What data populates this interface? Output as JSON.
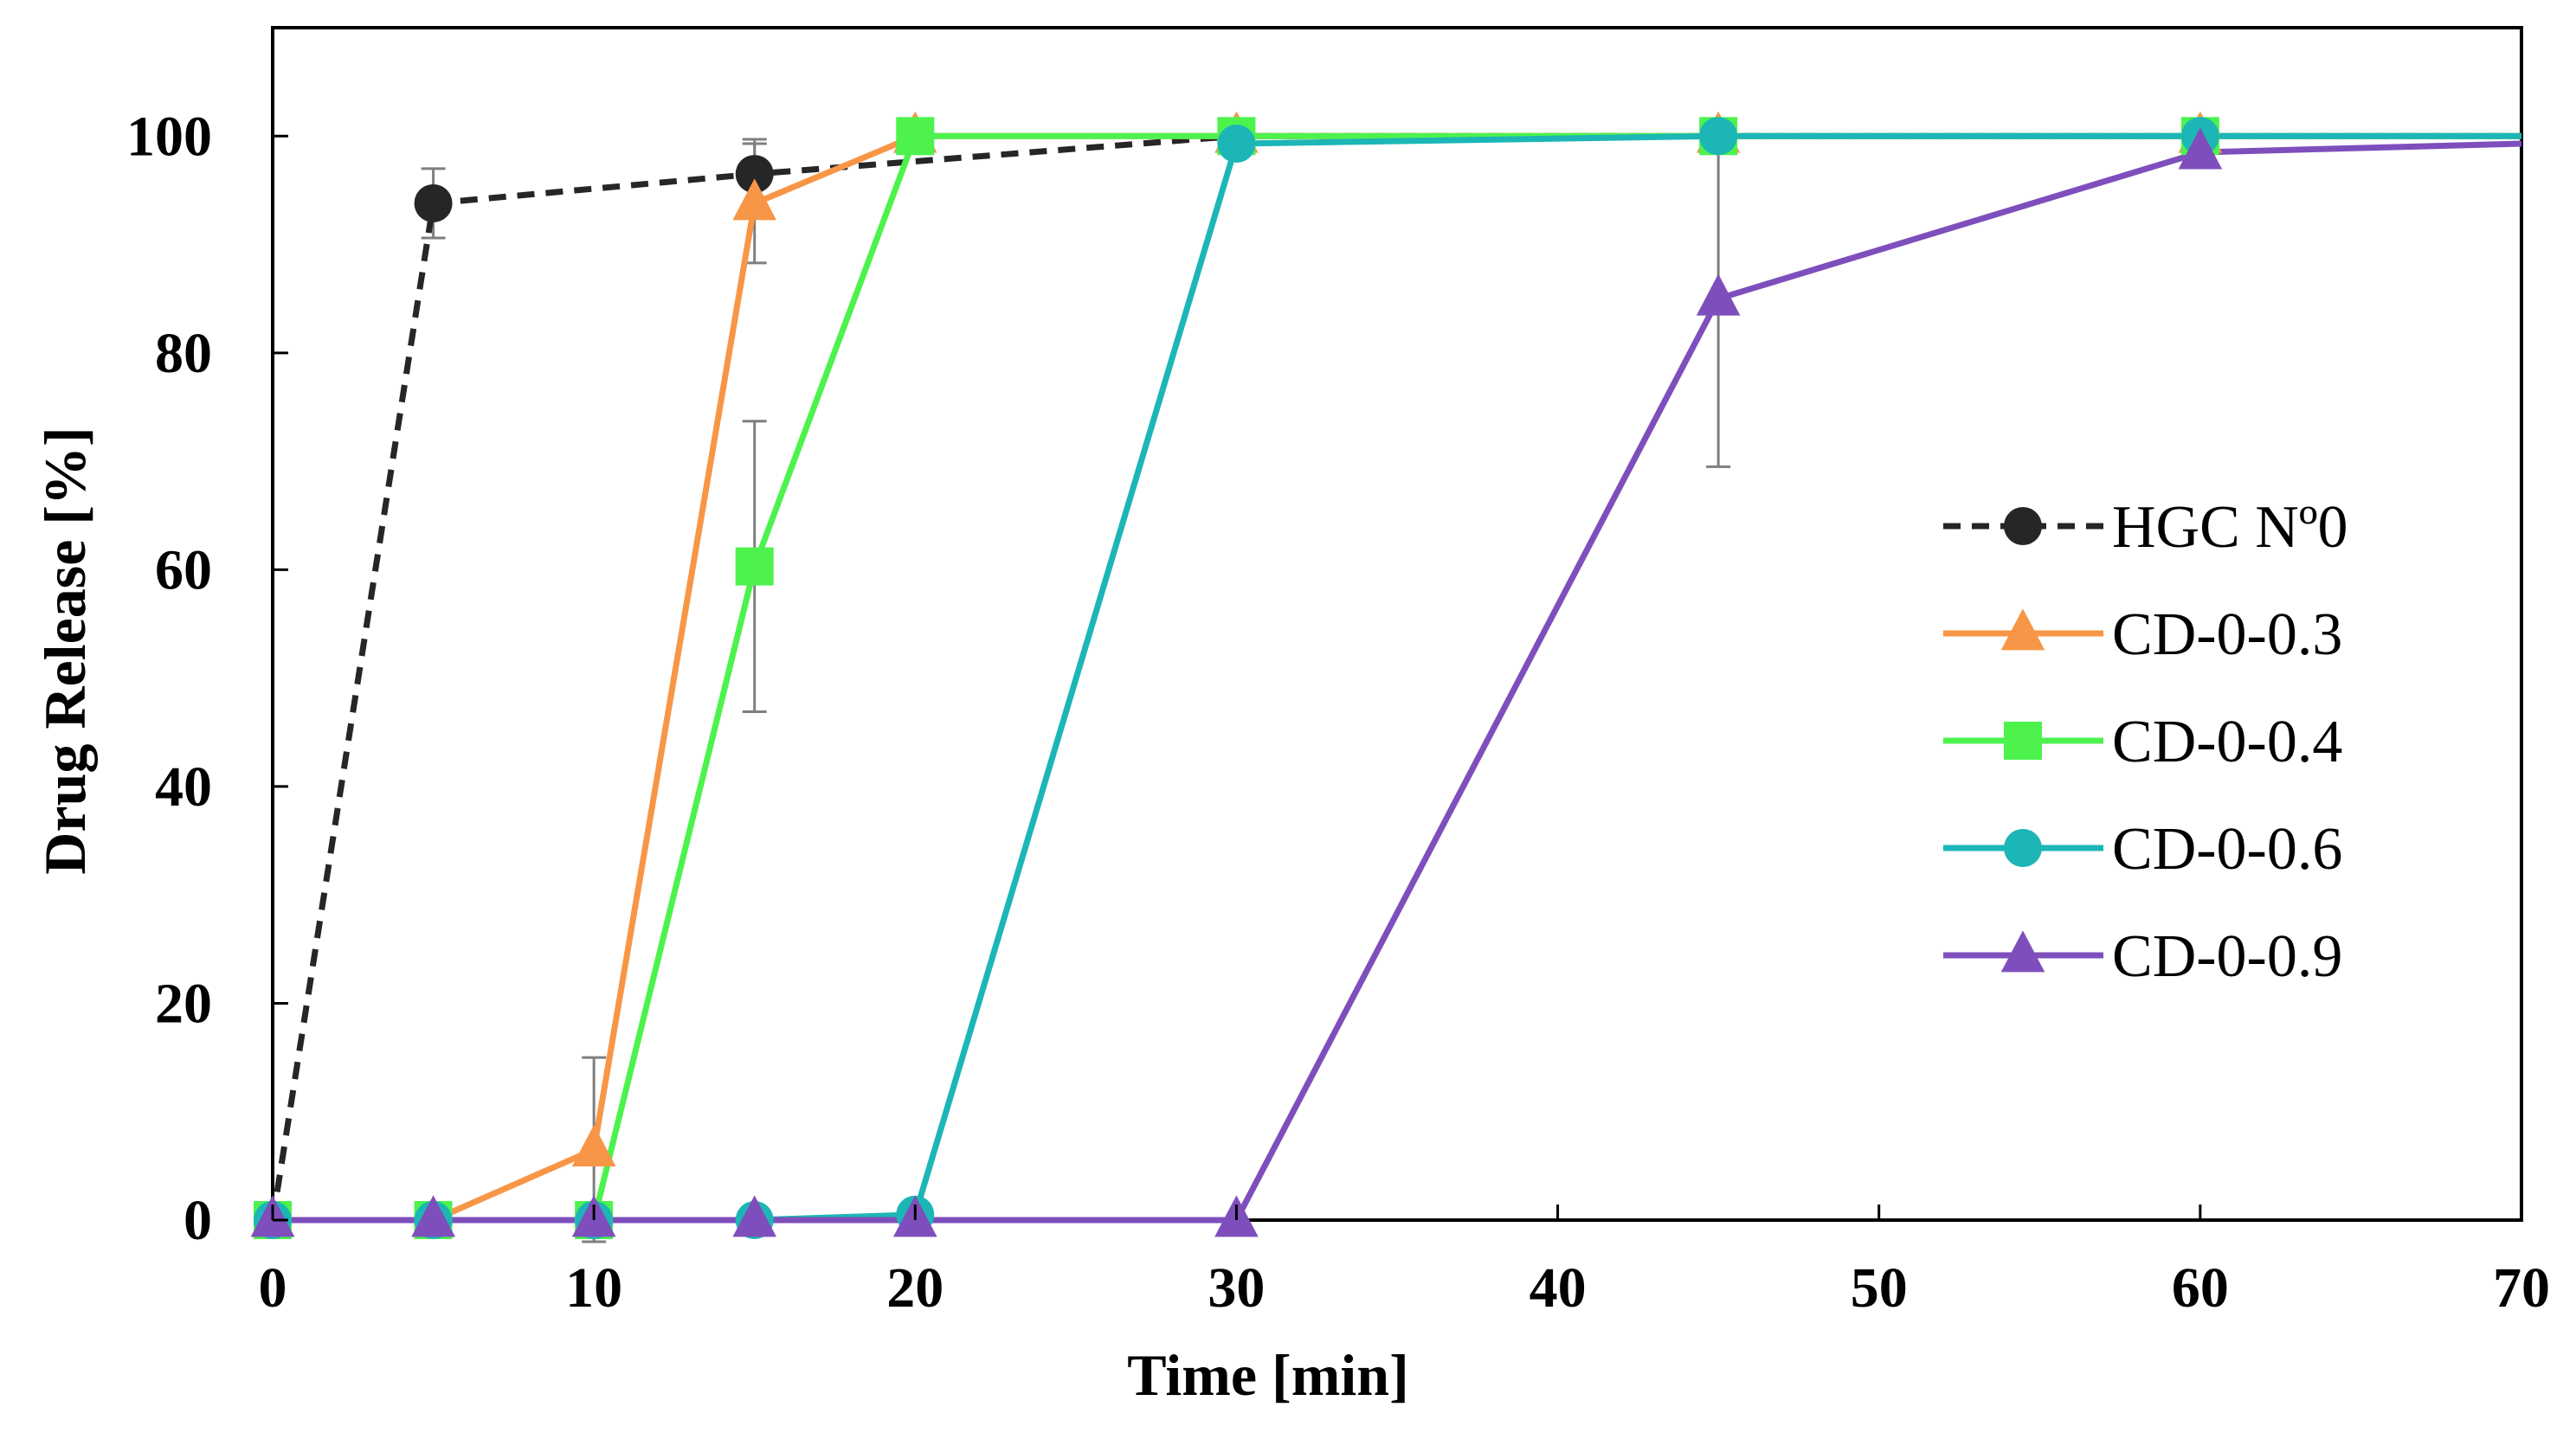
{
  "chart_data": {
    "type": "line",
    "title": "",
    "xlabel": "Time [min]",
    "ylabel": "Drug Release [%]",
    "xlim": [
      0,
      70
    ],
    "ylim": [
      0,
      110
    ],
    "xticks": [
      0,
      10,
      20,
      30,
      40,
      50,
      60,
      70
    ],
    "yticks": [
      0,
      20,
      40,
      60,
      80,
      100
    ],
    "grid": false,
    "legend_position": "right",
    "series": [
      {
        "name": "HGC Nº0",
        "color": "#262626",
        "marker": "circle",
        "line": "dashed",
        "x": [
          0,
          5,
          15,
          30,
          45,
          60,
          70
        ],
        "y": [
          0,
          93.8,
          96.5,
          100,
          100,
          100,
          100
        ],
        "err": [
          0,
          3.2,
          3.2,
          0,
          0,
          0,
          0
        ]
      },
      {
        "name": "CD-0-0.3",
        "color": "#f79646",
        "marker": "triangle",
        "line": "solid",
        "x": [
          0,
          5,
          10,
          15,
          20,
          30,
          45,
          60,
          70
        ],
        "y": [
          0,
          0,
          6.5,
          93.8,
          100,
          100,
          100,
          100,
          100
        ],
        "err": [
          0,
          0,
          8.5,
          5.5,
          0,
          0,
          0,
          0,
          0
        ]
      },
      {
        "name": "CD-0-0.4",
        "color": "#4df24d",
        "marker": "square",
        "line": "solid",
        "x": [
          0,
          5,
          10,
          15,
          20,
          30,
          45,
          60,
          70
        ],
        "y": [
          0,
          0,
          0,
          60.3,
          100,
          100,
          100,
          100,
          100
        ],
        "err": [
          0,
          0,
          0,
          13.4,
          0,
          0,
          0,
          0,
          0
        ]
      },
      {
        "name": "CD-0-0.6",
        "color": "#1cb6b6",
        "marker": "circle",
        "line": "solid",
        "x": [
          0,
          5,
          10,
          15,
          20,
          30,
          45,
          60,
          70
        ],
        "y": [
          0,
          0,
          0,
          0,
          0.5,
          99.3,
          100,
          100,
          100
        ],
        "err": [
          0,
          0,
          0,
          0,
          0,
          0,
          0,
          0,
          0
        ]
      },
      {
        "name": "CD-0-0.9",
        "color": "#7e4fbc",
        "marker": "triangle",
        "line": "solid",
        "x": [
          0,
          5,
          10,
          15,
          20,
          30,
          45,
          60,
          70
        ],
        "y": [
          0,
          0,
          0,
          0,
          0,
          0,
          85,
          98.5,
          99.3
        ],
        "err": [
          0,
          0,
          0,
          0,
          0,
          0,
          15.5,
          0,
          0
        ]
      }
    ]
  }
}
